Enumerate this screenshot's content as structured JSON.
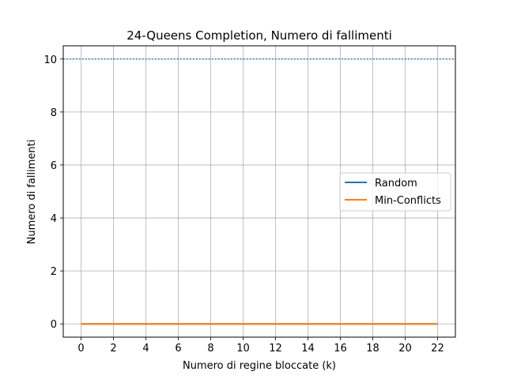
{
  "chart_data": {
    "type": "line",
    "title": "24-Queens Completion, Numero di fallimenti",
    "xlabel": "Numero di regine bloccate (k)",
    "ylabel": "Numero di fallimenti",
    "xlim": [
      -1.1,
      23.1
    ],
    "ylim": [
      -0.5,
      10.5
    ],
    "xticks": [
      0,
      2,
      4,
      6,
      8,
      10,
      12,
      14,
      16,
      18,
      20,
      22
    ],
    "yticks": [
      0,
      2,
      4,
      6,
      8,
      10
    ],
    "grid": true,
    "legend_position": "center-right",
    "series": [
      {
        "name": "Random",
        "color": "#1f77b4",
        "x": [
          0,
          22
        ],
        "y": [
          0,
          0
        ]
      },
      {
        "name": "Min-Conflicts",
        "color": "#ff7f0e",
        "x": [
          0,
          22
        ],
        "y": [
          0,
          0
        ]
      }
    ],
    "reference_lines": [
      {
        "y": 10,
        "color": "#1f77b4",
        "style": "dotted"
      }
    ]
  }
}
